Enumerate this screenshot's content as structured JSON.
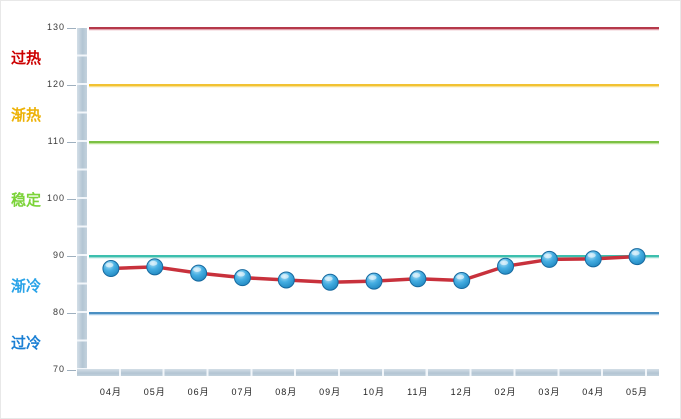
{
  "chart_data": {
    "type": "line",
    "categories": [
      "04月",
      "05月",
      "06月",
      "07月",
      "08月",
      "09月",
      "10月",
      "11月",
      "12月",
      "02月",
      "03月",
      "04月",
      "05月"
    ],
    "values": [
      87.8,
      88.1,
      87.0,
      86.2,
      85.8,
      85.4,
      85.6,
      86.0,
      85.7,
      88.2,
      89.4,
      89.5,
      89.9
    ],
    "title": "",
    "xlabel": "",
    "ylabel": "",
    "ylim": [
      70,
      130
    ],
    "yticks": [
      130,
      120,
      110,
      100,
      90,
      80,
      70
    ],
    "grid": false,
    "legend": "none",
    "series_line_color": "#c8313c",
    "marker_stroke_color": "#16699f",
    "marker_fill_colors": [
      "#b4e2f6",
      "#45aee2",
      "#1d84bd"
    ],
    "reference_lines": [
      {
        "value": 130,
        "color": "#b5394a",
        "shade": "#e2a0ab"
      },
      {
        "value": 120,
        "color": "#f2c232",
        "shade": "#f8e08e"
      },
      {
        "value": 110,
        "color": "#7cc144",
        "shade": "#bfe39a"
      },
      {
        "value": 90,
        "color": "#3cbfae",
        "shade": "#9cdcd2"
      },
      {
        "value": 80,
        "color": "#4a8fc2",
        "shade": "#aacde8"
      }
    ],
    "zones": [
      {
        "label": "过热",
        "color": "#cc0000",
        "range": [
          120,
          130
        ]
      },
      {
        "label": "渐热",
        "color": "#edb207",
        "range": [
          110,
          120
        ]
      },
      {
        "label": "稳定",
        "color": "#7bd338",
        "range": [
          90,
          110
        ]
      },
      {
        "label": "渐冷",
        "color": "#29a3e8",
        "range": [
          80,
          90
        ]
      },
      {
        "label": "过冷",
        "color": "#1a7fd4",
        "range": [
          70,
          80
        ]
      }
    ]
  }
}
